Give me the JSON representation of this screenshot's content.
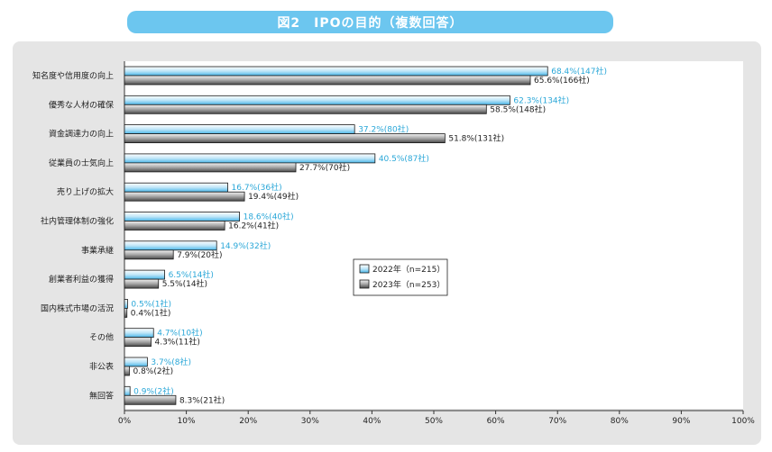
{
  "chart_data": {
    "type": "bar",
    "orientation": "horizontal",
    "title": "図2　IPOの目的（複数回答）",
    "categories": [
      "知名度や信用度の向上",
      "優秀な人材の確保",
      "資金調達力の向上",
      "従業員の士気向上",
      "売り上げの拡大",
      "社内管理体制の強化",
      "事業承継",
      "創業者利益の獲得",
      "国内株式市場の活況",
      "その他",
      "非公表",
      "無回答"
    ],
    "series": [
      {
        "name": "2022年（n=215）",
        "values": [
          68.4,
          62.3,
          37.2,
          40.5,
          16.7,
          18.6,
          14.9,
          6.5,
          0.5,
          4.7,
          3.7,
          0.9
        ],
        "labels": [
          "68.4%(147社)",
          "62.3%(134社)",
          "37.2%(80社)",
          "40.5%(87社)",
          "16.7%(36社)",
          "18.6%(40社)",
          "14.9%(32社)",
          "6.5%(14社)",
          "0.5%(1社)",
          "4.7%(10社)",
          "3.7%(8社)",
          "0.9%(2社)"
        ],
        "color": "#6cc6ef"
      },
      {
        "name": "2023年（n=253）",
        "values": [
          65.6,
          58.5,
          51.8,
          27.7,
          19.4,
          16.2,
          7.9,
          5.5,
          0.4,
          4.3,
          0.8,
          8.3
        ],
        "labels": [
          "65.6%(166社)",
          "58.5%(148社)",
          "51.8%(131社)",
          "27.7%(70社)",
          "19.4%(49社)",
          "16.2%(41社)",
          "7.9%(20社)",
          "5.5%(14社)",
          "0.4%(1社)",
          "4.3%(11社)",
          "0.8%(2社)",
          "8.3%(21社)"
        ],
        "color": "#7a7a7a"
      }
    ],
    "xlim": [
      0,
      100
    ],
    "xticks": [
      "0%",
      "10%",
      "20%",
      "30%",
      "40%",
      "50%",
      "60%",
      "70%",
      "80%",
      "90%",
      "100%"
    ],
    "legend": "center-right",
    "grid": false
  }
}
